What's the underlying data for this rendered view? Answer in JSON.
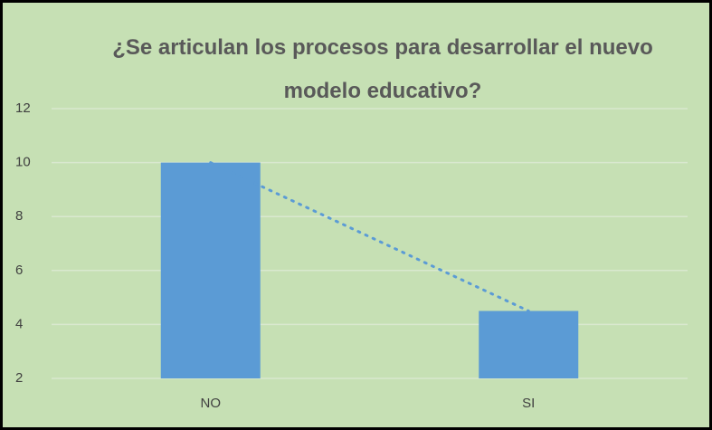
{
  "chart_data": {
    "type": "bar",
    "title": "¿Se articulan los procesos para desarrollar el nuevo modelo educativo?",
    "categories": [
      "NO",
      "SI"
    ],
    "values": [
      10,
      4.5
    ],
    "color": "#5b9bd5",
    "ylim": [
      2,
      12
    ],
    "yticks": [
      2,
      4,
      6,
      8,
      10,
      12
    ],
    "grid": true,
    "trendline": true
  }
}
